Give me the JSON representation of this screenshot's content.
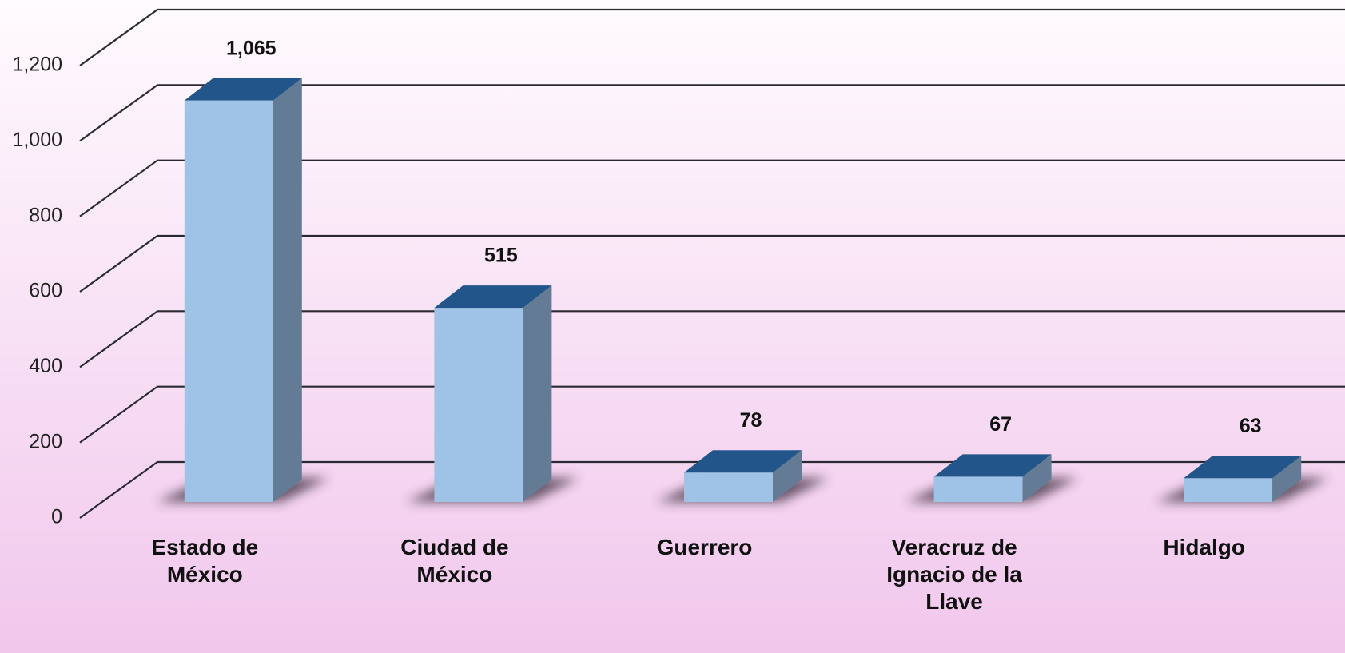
{
  "chart_data": {
    "type": "bar3d",
    "categories": [
      "Estado de México",
      "Ciudad de México",
      "Guerrero",
      "Veracruz de Ignacio de la Llave",
      "Hidalgo"
    ],
    "values": [
      1065,
      515,
      78,
      67,
      63
    ],
    "value_labels": [
      "1,065",
      "515",
      "78",
      "67",
      "63"
    ],
    "colors": {
      "front": "#9fc3e6",
      "side": "#637b94",
      "top": "#22568a"
    },
    "ylim": [
      0,
      1200
    ],
    "yticks": [
      0,
      200,
      400,
      600,
      800,
      {
        "value": 1000,
        "label": "1,000"
      },
      {
        "value": 1200,
        "label": "1,200"
      }
    ],
    "grid": true
  }
}
